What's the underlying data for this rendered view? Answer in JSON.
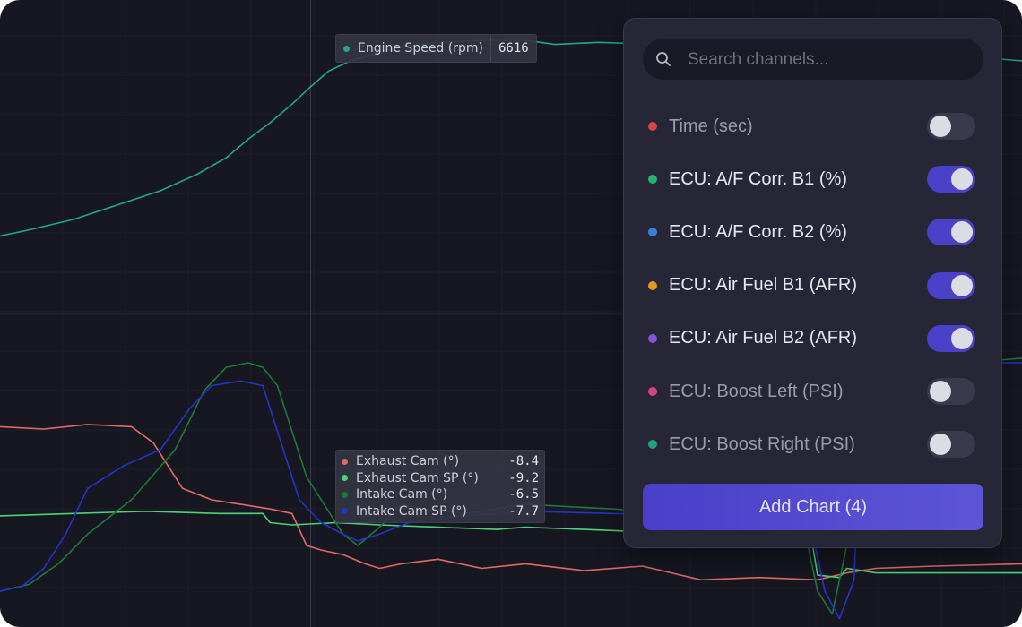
{
  "colors": {
    "background": "#171722",
    "panel": "#262636",
    "accent": "#4a41c8",
    "engine_speed": "#21a883",
    "exhaust_cam": "#e06a6a",
    "exhaust_cam_sp": "#4cd37a",
    "intake_cam": "#1d7a3a",
    "intake_cam_sp": "#2535c4"
  },
  "tooltip_top": {
    "label": "Engine Speed (rpm)",
    "value": "6616",
    "dot_color": "#21a883"
  },
  "tooltip_bottom": {
    "rows": [
      {
        "label": "Exhaust Cam (°)",
        "value": "-8.4",
        "color": "#e06a6a"
      },
      {
        "label": "Exhaust Cam SP (°)",
        "value": "-9.2",
        "color": "#4cd37a"
      },
      {
        "label": "Intake Cam (°)",
        "value": "-6.5",
        "color": "#1d7a3a"
      },
      {
        "label": "Intake Cam SP (°)",
        "value": "-7.7",
        "color": "#2535c4"
      }
    ]
  },
  "panel": {
    "search_placeholder": "Search channels...",
    "search_icon": "search-icon",
    "channels": [
      {
        "label": "Time (sec)",
        "color": "#d64545",
        "enabled": false
      },
      {
        "label": "ECU: A/F Corr. B1 (%)",
        "color": "#28b36a",
        "enabled": true
      },
      {
        "label": "ECU: A/F Corr. B2 (%)",
        "color": "#3a7ed8",
        "enabled": true
      },
      {
        "label": "ECU: Air Fuel B1 (AFR)",
        "color": "#e09a1e",
        "enabled": true
      },
      {
        "label": "ECU: Air Fuel B2 (AFR)",
        "color": "#8a52d6",
        "enabled": true
      },
      {
        "label": "ECU: Boost Left (PSI)",
        "color": "#d44485",
        "enabled": false
      },
      {
        "label": "ECU: Boost Right (PSI)",
        "color": "#1fa37a",
        "enabled": false
      }
    ],
    "add_button": "Add Chart (4)"
  },
  "chart_data": [
    {
      "type": "line",
      "series": [
        {
          "name": "Engine Speed (rpm)",
          "x": [
            0,
            20,
            50,
            80,
            110,
            135,
            155,
            170,
            185,
            200,
            212,
            225,
            240,
            260,
            275,
            300,
            330,
            360,
            380,
            410,
            450,
            490,
            530,
            555,
            562,
            570,
            580,
            600,
            650,
            700
          ],
          "y": [
            0.05,
            0.08,
            0.13,
            0.2,
            0.27,
            0.35,
            0.43,
            0.52,
            0.6,
            0.69,
            0.77,
            0.85,
            0.9,
            0.94,
            0.97,
            0.99,
            1.0,
            1.0,
            0.98,
            0.99,
            0.98,
            0.98,
            0.97,
            0.95,
            0.88,
            0.95,
            0.96,
            0.94,
            0.93,
            0.9
          ]
        }
      ]
    },
    {
      "type": "line",
      "series": [
        {
          "name": "Exhaust Cam (°)",
          "x": [
            0,
            30,
            60,
            90,
            105,
            115,
            125,
            145,
            165,
            185,
            200,
            210,
            220,
            235,
            250,
            260,
            275,
            300,
            330,
            360,
            400,
            440,
            480,
            520,
            560,
            580,
            600,
            640,
            700
          ],
          "y": [
            0.72,
            0.71,
            0.73,
            0.72,
            0.65,
            0.55,
            0.45,
            0.4,
            0.38,
            0.36,
            0.34,
            0.2,
            0.18,
            0.16,
            0.12,
            0.1,
            0.12,
            0.14,
            0.1,
            0.12,
            0.09,
            0.11,
            0.05,
            0.06,
            0.05,
            0.08,
            0.1,
            0.11,
            0.12
          ]
        },
        {
          "name": "Exhaust Cam SP (°)",
          "x": [
            0,
            50,
            100,
            150,
            180,
            185,
            200,
            230,
            260,
            300,
            340,
            360,
            400,
            440,
            480,
            520,
            540,
            555,
            560,
            575,
            580,
            600,
            700
          ],
          "y": [
            0.33,
            0.34,
            0.35,
            0.34,
            0.34,
            0.3,
            0.29,
            0.3,
            0.29,
            0.28,
            0.27,
            0.28,
            0.27,
            0.26,
            0.27,
            0.28,
            0.27,
            0.26,
            0.07,
            0.06,
            0.1,
            0.08,
            0.08
          ]
        },
        {
          "name": "Intake Cam (°)",
          "x": [
            0,
            20,
            40,
            60,
            90,
            120,
            140,
            155,
            170,
            180,
            190,
            200,
            210,
            220,
            235,
            245,
            260,
            275,
            290,
            320,
            360,
            420,
            480,
            520,
            550,
            560,
            570,
            580,
            590,
            600,
            620,
            660,
            700
          ],
          "y": [
            0.0,
            0.03,
            0.12,
            0.25,
            0.4,
            0.62,
            0.88,
            0.98,
            1.0,
            0.98,
            0.9,
            0.7,
            0.5,
            0.4,
            0.25,
            0.2,
            0.28,
            0.38,
            0.36,
            0.34,
            0.38,
            0.36,
            0.33,
            0.34,
            0.3,
            0.0,
            -0.1,
            0.2,
            0.85,
            1.0,
            1.02,
            1.0,
            1.02
          ]
        },
        {
          "name": "Intake Cam SP (°)",
          "x": [
            0,
            15,
            30,
            45,
            60,
            85,
            110,
            130,
            145,
            165,
            180,
            195,
            205,
            220,
            235,
            245,
            260,
            280,
            300,
            340,
            360,
            420,
            480,
            520,
            555,
            565,
            575,
            585,
            590,
            600,
            650,
            700
          ],
          "y": [
            0.0,
            0.02,
            0.1,
            0.25,
            0.45,
            0.55,
            0.62,
            0.8,
            0.9,
            0.92,
            0.9,
            0.6,
            0.4,
            0.3,
            0.25,
            0.22,
            0.25,
            0.3,
            0.32,
            0.34,
            0.35,
            0.34,
            0.33,
            0.32,
            0.3,
            0.0,
            -0.12,
            0.05,
            0.9,
            1.0,
            1.0,
            1.0
          ]
        }
      ]
    }
  ]
}
